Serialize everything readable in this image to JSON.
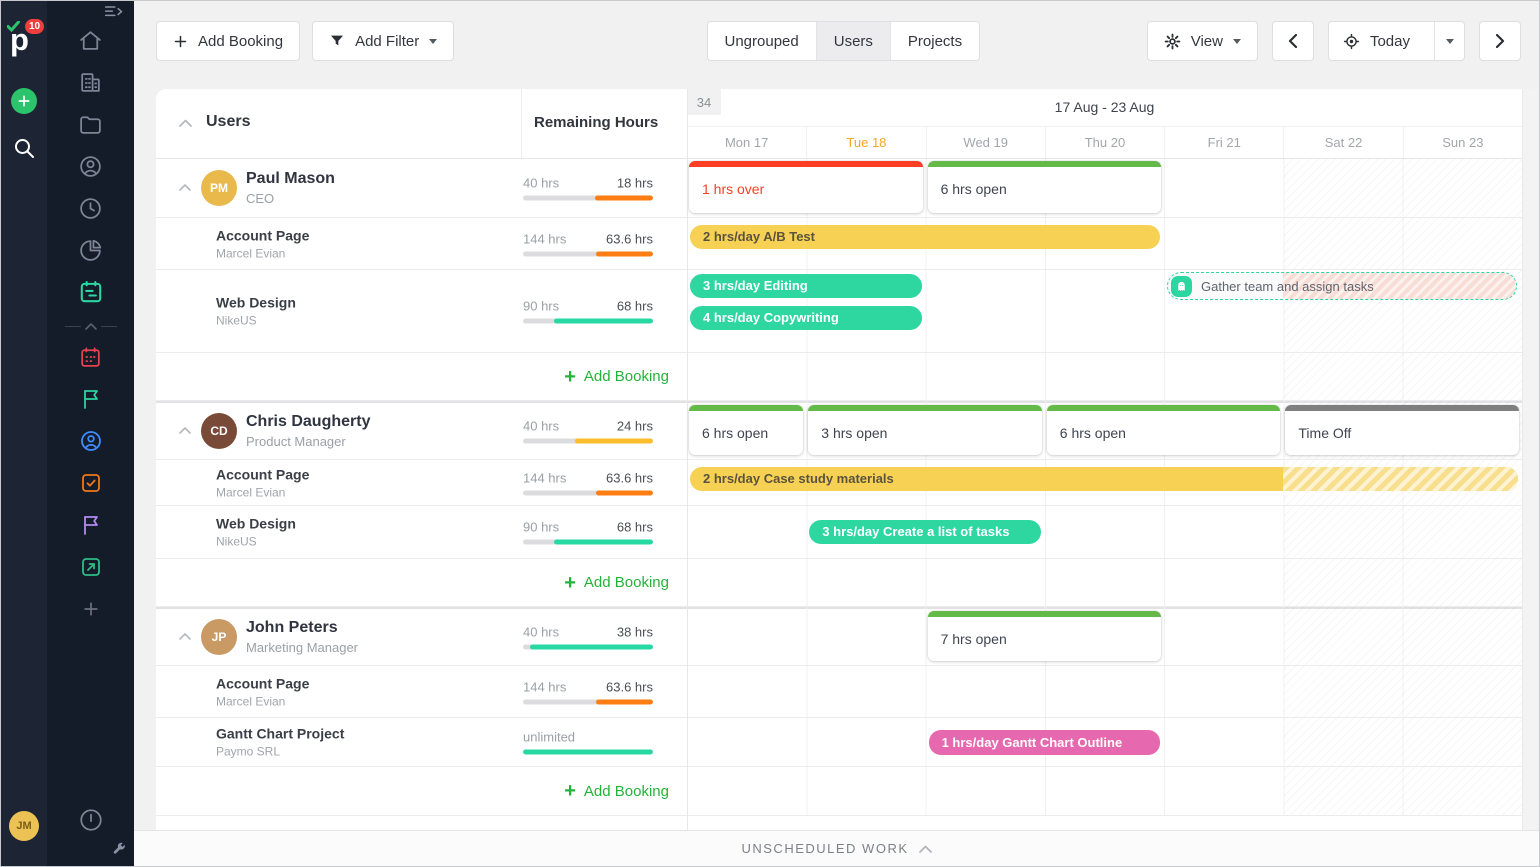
{
  "sidebar": {
    "logo_letter": "p",
    "badge": "10",
    "icons": [
      "collapse-sidebar-icon",
      "home-icon",
      "projects-building-icon",
      "files-folder-icon",
      "clients-icon",
      "time-clock-icon",
      "reports-pie-icon",
      "scheduler-calendar-icon",
      "milestones-calendar-icon",
      "flag-teal-icon",
      "users-blue-icon",
      "tasks-orange-icon",
      "flag-purple-icon",
      "shortcut-green-icon",
      "add-module-icon",
      "activity-clock-icon",
      "settings-wrench-icon"
    ],
    "avatar_initials": "JM"
  },
  "toolbar": {
    "add_booking": "Add Booking",
    "add_filter": "Add Filter",
    "tabs": {
      "ungrouped": "Ungrouped",
      "users": "Users",
      "projects": "Projects"
    },
    "view": "View",
    "today": "Today"
  },
  "header": {
    "left_title": "Users",
    "hours_title": "Remaining Hours",
    "week_number": "34",
    "week_range": "17 Aug - 23 Aug",
    "days": [
      {
        "label": "Mon 17"
      },
      {
        "label": "Tue 18"
      },
      {
        "label": "Wed 19"
      },
      {
        "label": "Thu 20"
      },
      {
        "label": "Fri 21"
      },
      {
        "label": "Sat 22"
      },
      {
        "label": "Sun 23"
      }
    ],
    "today_day": "Tue 18"
  },
  "sections": [
    {
      "user": {
        "name": "Paul Mason",
        "role": "CEO",
        "initials": "PM",
        "capacity": "40 hrs",
        "remaining": "18 hrs",
        "pct": 45
      },
      "heat": [
        {
          "label": "1 hrs over"
        },
        {
          "label": "6 hrs open"
        }
      ],
      "projects": [
        {
          "name": "Account Page",
          "client": "Marcel Evian",
          "capacity": "144 hrs",
          "remaining": "63.6 hrs",
          "pct": 44,
          "bookings": [
            {
              "label": "2 hrs/day A/B Test"
            }
          ]
        },
        {
          "name": "Web Design",
          "client": "NikeUS",
          "capacity": "90 hrs",
          "remaining": "68 hrs",
          "pct": 76,
          "bookings": [
            {
              "label": "3 hrs/day Editing"
            },
            {
              "label": "4 hrs/day Copywriting"
            }
          ],
          "ghost": {
            "label": "Gather team and assign tasks"
          }
        }
      ],
      "add_booking": "Add Booking"
    },
    {
      "user": {
        "name": "Chris Daugherty",
        "role": "Product Manager",
        "initials": "CD",
        "capacity": "40 hrs",
        "remaining": "24 hrs",
        "pct": 60
      },
      "heat": [
        {
          "label": "6 hrs open"
        },
        {
          "label": "3 hrs open"
        },
        {
          "label": "6 hrs open"
        },
        {
          "label": "Time Off"
        }
      ],
      "projects": [
        {
          "name": "Account Page",
          "client": "Marcel Evian",
          "capacity": "144 hrs",
          "remaining": "63.6 hrs",
          "pct": 44,
          "bookings": [
            {
              "label": "2 hrs/day Case study materials"
            }
          ]
        },
        {
          "name": "Web Design",
          "client": "NikeUS",
          "capacity": "90 hrs",
          "remaining": "68 hrs",
          "pct": 76,
          "bookings": [
            {
              "label": "3 hrs/day Create a list of tasks"
            }
          ]
        }
      ],
      "add_booking": "Add Booking"
    },
    {
      "user": {
        "name": "John Peters",
        "role": "Marketing Manager",
        "initials": "JP",
        "capacity": "40 hrs",
        "remaining": "38 hrs",
        "pct": 95
      },
      "heat": [
        {
          "label": "7 hrs open"
        }
      ],
      "projects": [
        {
          "name": "Account Page",
          "client": "Marcel Evian",
          "capacity": "144 hrs",
          "remaining": "63.6 hrs",
          "pct": 44,
          "bookings": []
        },
        {
          "name": "Gantt Chart Project",
          "client": "Paymo SRL",
          "capacity": "unlimited",
          "remaining": "",
          "pct": 100,
          "bookings": [
            {
              "label": "1 hrs/day Gantt Chart Outline"
            }
          ]
        }
      ],
      "add_booking": "Add Booking"
    }
  ],
  "footer": {
    "label": "UNSCHEDULED WORK"
  },
  "colors": {
    "accent_teal": "#2bd6a1",
    "open_green": "#64ba49",
    "over_red": "#fb3e24",
    "booking_yellow": "#f7d154",
    "booking_pink": "#e668ae",
    "bar_orange": "#fd7e14",
    "bar_amber": "#fcbe2d",
    "time_off_gray": "#7f7f7f",
    "add_green": "#23b33a",
    "today_orange": "#f5a623"
  }
}
